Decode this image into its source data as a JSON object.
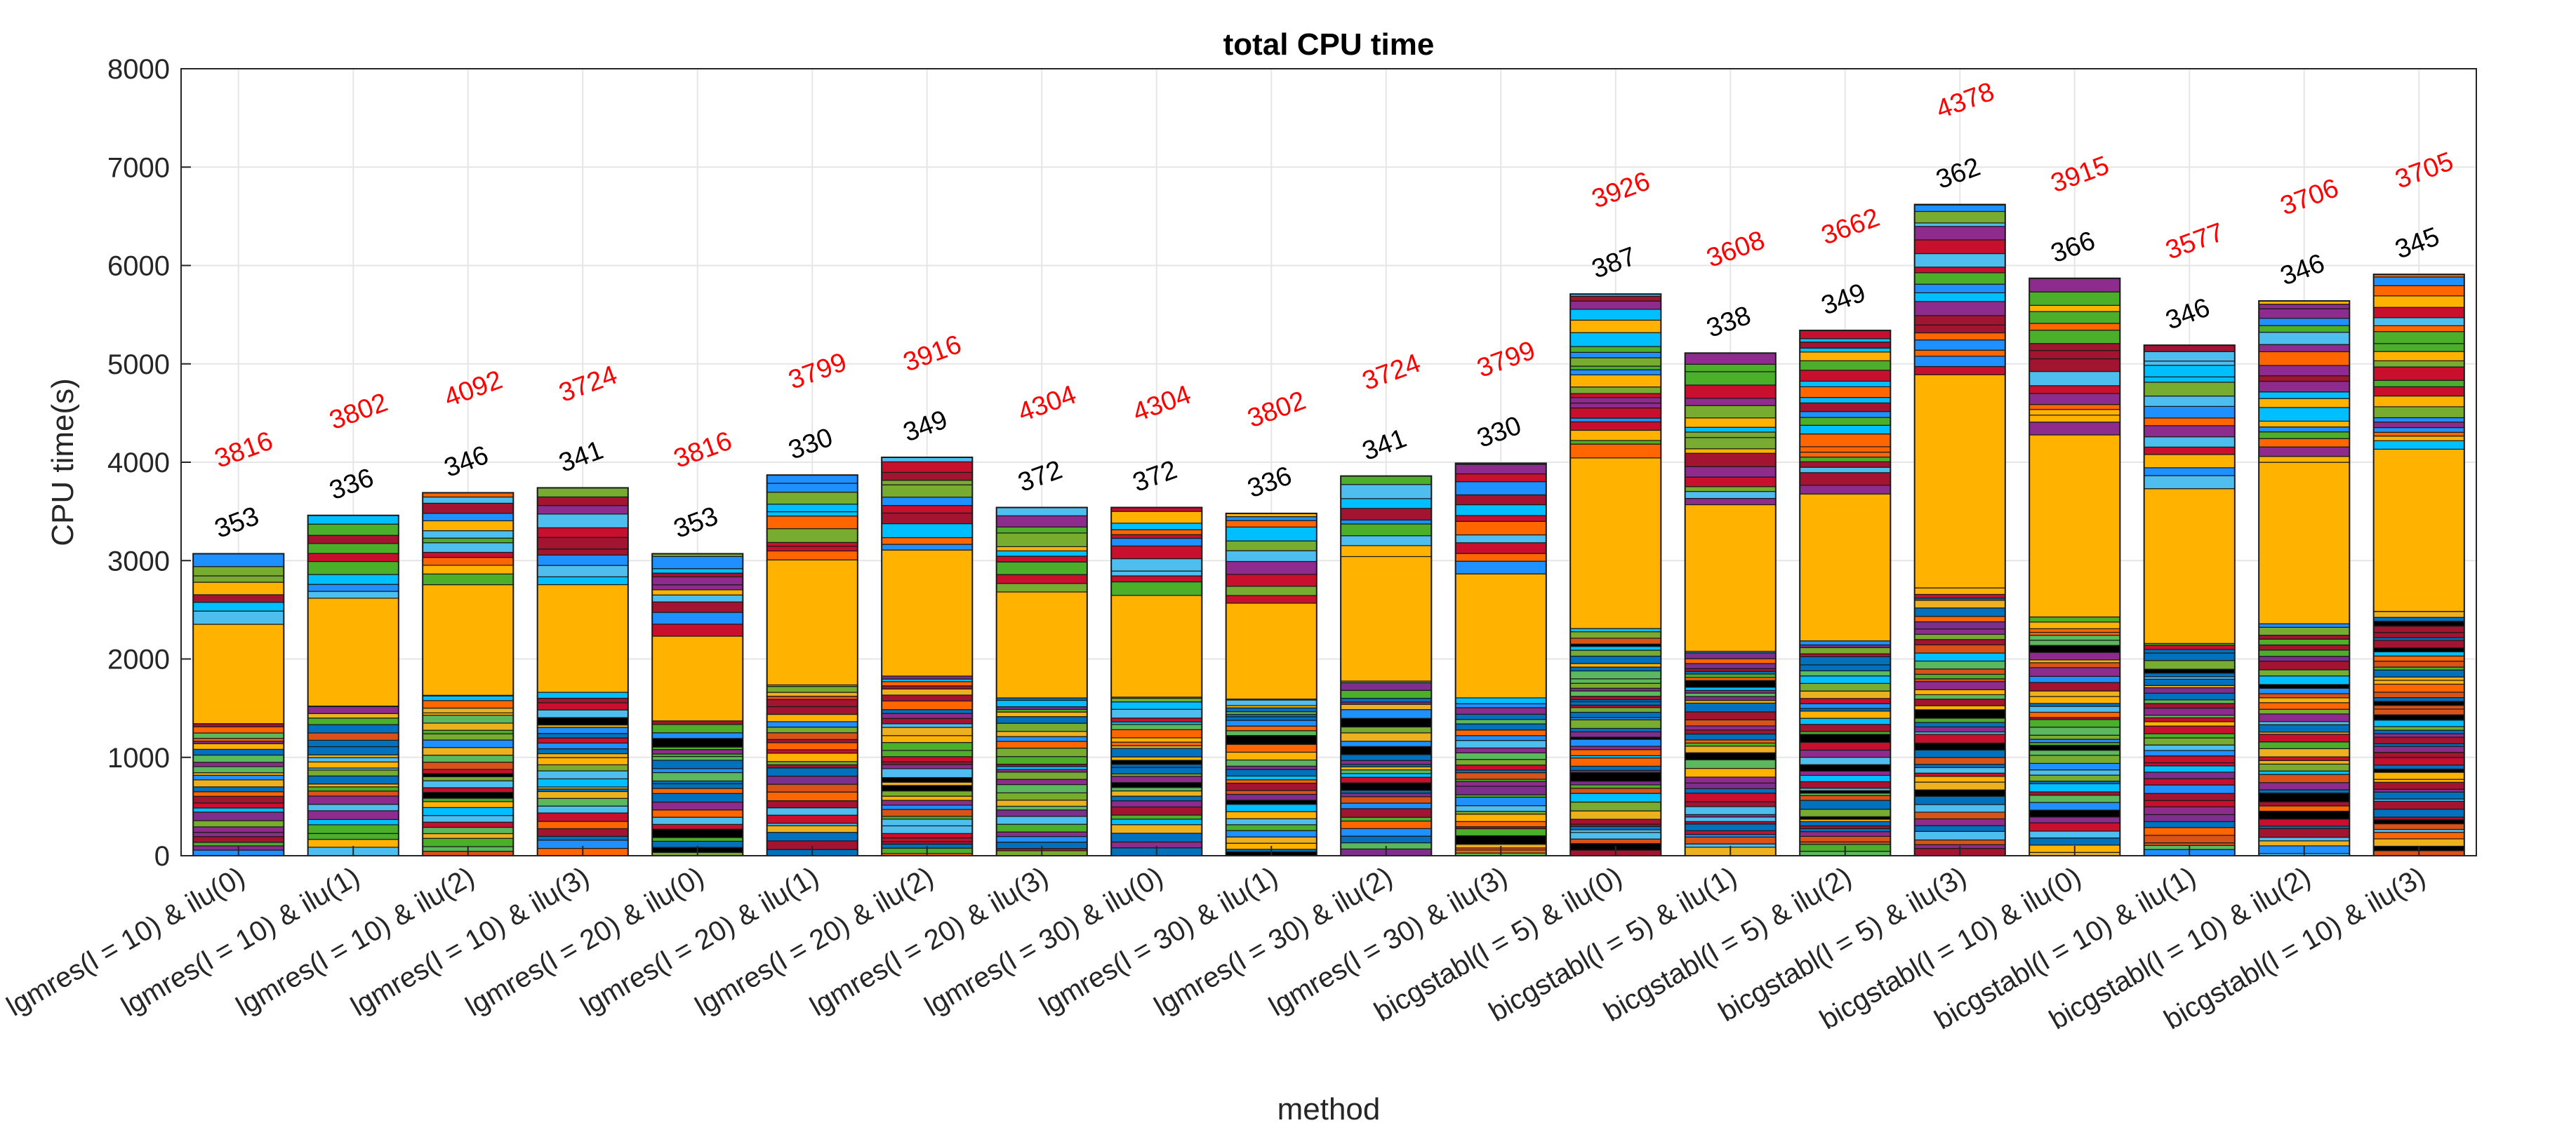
{
  "chart_data": {
    "type": "bar",
    "stacked": true,
    "title": "total CPU time",
    "xlabel": "method",
    "ylabel": "CPU time(s)",
    "ylim": [
      0,
      8000
    ],
    "yticks": [
      0,
      1000,
      2000,
      3000,
      4000,
      5000,
      6000,
      7000,
      8000
    ],
    "grid": true,
    "categories": [
      "lgmres(l = 10) & ilu(0)",
      "lgmres(l = 10) & ilu(1)",
      "lgmres(l = 10) & ilu(2)",
      "lgmres(l = 10) & ilu(3)",
      "lgmres(l = 20) & ilu(0)",
      "lgmres(l = 20) & ilu(1)",
      "lgmres(l = 20) & ilu(2)",
      "lgmres(l = 20) & ilu(3)",
      "lgmres(l = 30) & ilu(0)",
      "lgmres(l = 30) & ilu(1)",
      "lgmres(l = 30) & ilu(2)",
      "lgmres(l = 30) & ilu(3)",
      "bicgstabl(l = 5) & ilu(0)",
      "bicgstabl(l = 5) & ilu(1)",
      "bicgstabl(l = 5) & ilu(2)",
      "bicgstabl(l = 5) & ilu(3)",
      "bicgstabl(l = 10) & ilu(0)",
      "bicgstabl(l = 10) & ilu(1)",
      "bicgstabl(l = 10) & ilu(2)",
      "bicgstabl(l = 10) & ilu(3)"
    ],
    "totals": [
      3070,
      3460,
      3690,
      3740,
      3070,
      3870,
      4050,
      3540,
      3540,
      3480,
      3860,
      3990,
      5710,
      5110,
      5340,
      6620,
      5870,
      5190,
      5640,
      5910
    ],
    "black_labels": [
      "353",
      "336",
      "346",
      "341",
      "353",
      "330",
      "349",
      "372",
      "372",
      "336",
      "341",
      "330",
      "387",
      "338",
      "349",
      "362",
      "366",
      "346",
      "346",
      "345"
    ],
    "red_labels": [
      "3816",
      "3802",
      "4092",
      "3724",
      "3816",
      "3799",
      "3916",
      "4304",
      "4304",
      "3802",
      "3724",
      "3799",
      "3926",
      "3608",
      "3662",
      "4378",
      "3915",
      "3577",
      "3706",
      "3705"
    ],
    "segment_colors": [
      "#0072BD",
      "#D95319",
      "#EDB120",
      "#7E2F8E",
      "#77AC30",
      "#4DBEEE",
      "#A2142F",
      "#000000",
      "#FF6600",
      "#1E90FF",
      "#5CB85C",
      "#00BFFF",
      "#FFB300",
      "#8E2C8E",
      "#C8102E",
      "#4CAF2A"
    ]
  }
}
